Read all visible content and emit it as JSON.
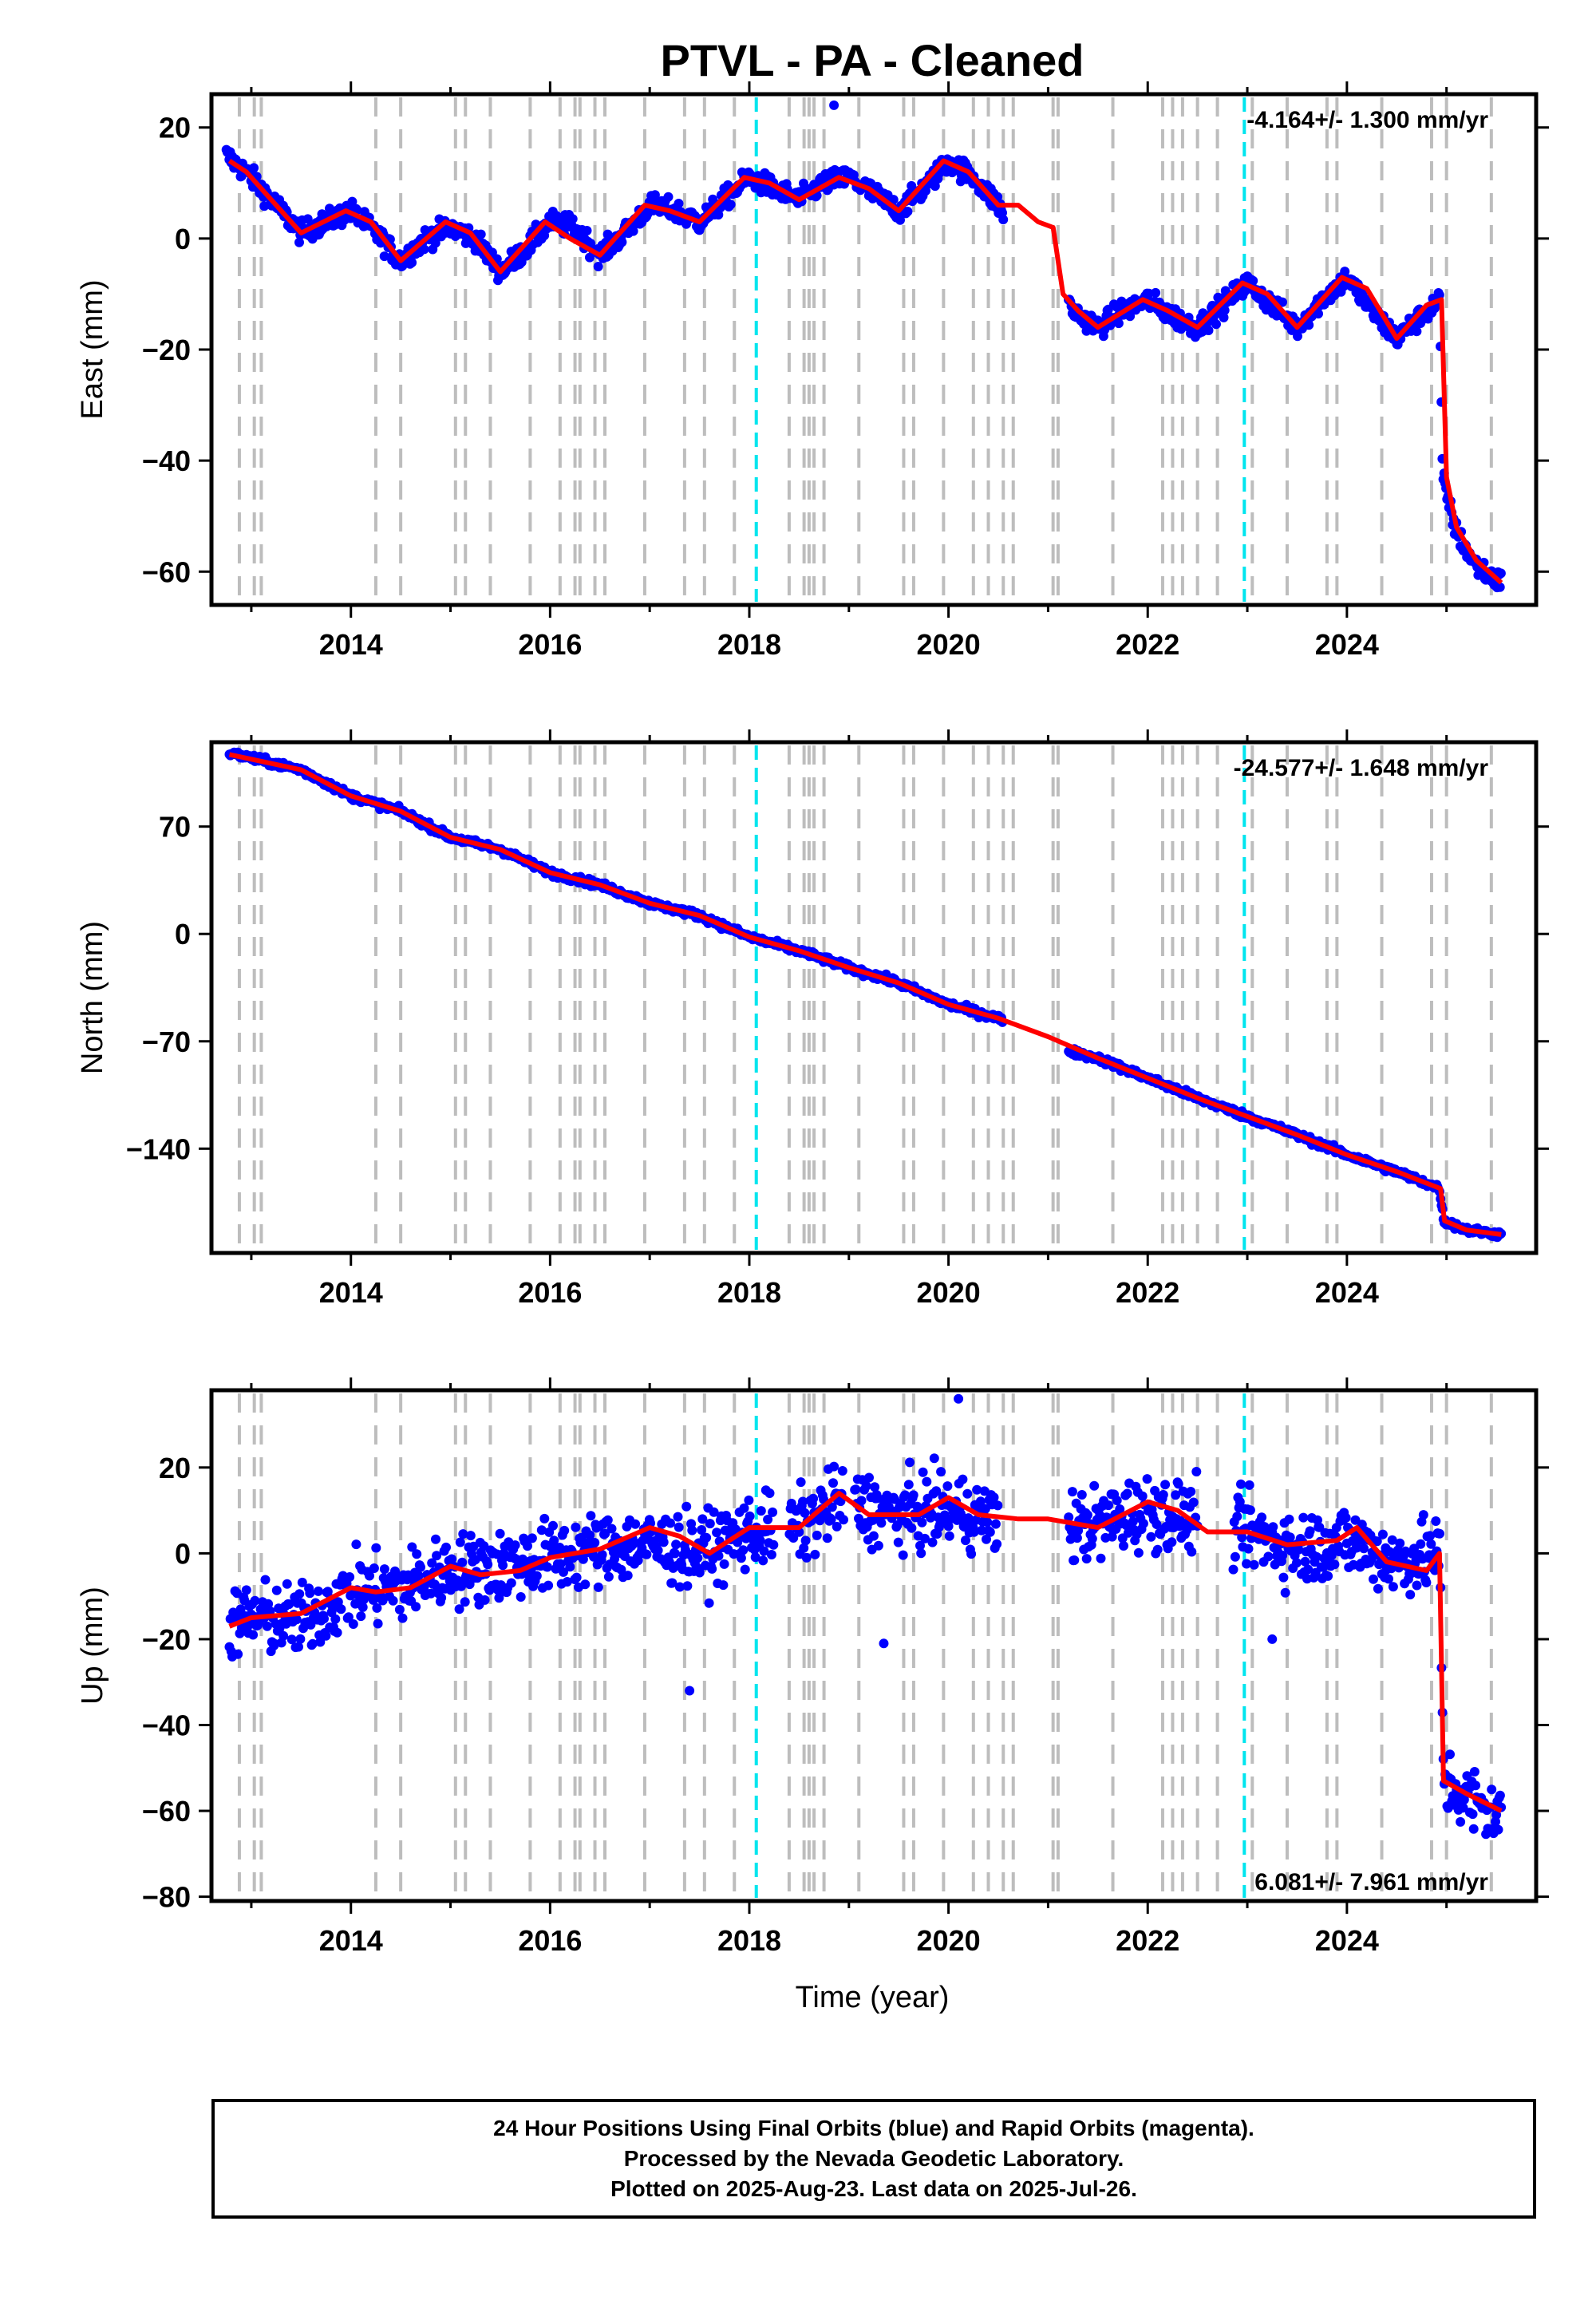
{
  "title": "PTVL  - PA - Cleaned",
  "xlabel": "Time (year)",
  "caption": [
    "24 Hour Positions Using Final Orbits (blue) and Rapid Orbits (magenta).",
    "Processed by the Nevada Geodetic Laboratory.",
    "Plotted on 2025-Aug-23. Last data on 2025-Jul-26."
  ],
  "colors": {
    "data": "#0000ff",
    "model": "#ff0000",
    "gray_lines": "#bdbdbd",
    "cyan_lines": "#00e5ee",
    "axes": "#000000"
  },
  "chart_data": [
    {
      "type": "scatter",
      "component": "East",
      "ylabel": "East (mm)",
      "rate_label": "-4.164+/- 1.300 mm/yr",
      "rate_position": "top-right",
      "xlim": [
        2012.6,
        2025.9
      ],
      "ylim": [
        -66,
        26
      ],
      "xticks": [
        2014,
        2016,
        2018,
        2020,
        2022,
        2024
      ],
      "yticks": [
        20,
        0,
        -20,
        -40,
        -60
      ],
      "model": {
        "x": [
          2012.78,
          2012.95,
          2013.2,
          2013.5,
          2013.95,
          2014.2,
          2014.5,
          2014.95,
          2015.2,
          2015.5,
          2015.95,
          2016.2,
          2016.5,
          2016.95,
          2017.2,
          2017.5,
          2017.95,
          2018.2,
          2018.5,
          2018.9,
          2019.2,
          2019.5,
          2019.95,
          2020.2,
          2020.5,
          2020.7,
          2020.9,
          2021.05,
          2021.15,
          2021.3,
          2021.5,
          2021.95,
          2022.2,
          2022.5,
          2022.95,
          2023.2,
          2023.5,
          2023.95,
          2024.2,
          2024.5,
          2024.8,
          2024.95,
          2025.0,
          2025.1,
          2025.3,
          2025.55
        ],
        "y": [
          14,
          12,
          7,
          1,
          5,
          3,
          -4,
          3,
          1,
          -6,
          3,
          0,
          -3,
          6,
          5,
          3,
          11,
          10,
          7,
          11,
          9,
          5,
          14,
          12,
          6,
          6,
          3,
          2,
          -10,
          -13,
          -16,
          -11,
          -13,
          -16,
          -8,
          -10,
          -16,
          -7,
          -9,
          -18,
          -12,
          -11,
          -43,
          -52,
          -58,
          -62
        ]
      },
      "scatter_model": {
        "x": [
          2012.75,
          2013.0,
          2013.25,
          2013.5,
          2013.75,
          2014.0,
          2014.25,
          2014.5,
          2014.75,
          2015.0,
          2015.25,
          2015.5,
          2015.75,
          2016.0,
          2016.25,
          2016.5,
          2016.75,
          2017.0,
          2017.25,
          2017.5,
          2017.75,
          2018.0,
          2018.25,
          2018.5,
          2018.75,
          2019.0,
          2019.25,
          2019.5,
          2019.75,
          2020.0,
          2020.25,
          2020.5,
          2021.25,
          2021.5,
          2021.75,
          2022.0,
          2022.25,
          2022.5,
          2022.75,
          2023.0,
          2023.25,
          2023.5,
          2023.75,
          2024.0,
          2024.25,
          2024.5,
          2024.75,
          2024.93,
          2024.96,
          2025.1,
          2025.3,
          2025.55
        ],
        "y": [
          15,
          11,
          6,
          1,
          3,
          5,
          1,
          -4,
          0,
          2,
          0,
          -6,
          -2,
          3,
          2,
          -3,
          1,
          6,
          5,
          3,
          7,
          11,
          9,
          7,
          10,
          11,
          8,
          5,
          9,
          14,
          11,
          6,
          -13,
          -16,
          -13,
          -11,
          -14,
          -16,
          -12,
          -8,
          -12,
          -16,
          -11,
          -7,
          -13,
          -18,
          -14,
          -11,
          -43,
          -53,
          -59,
          -62
        ]
      },
      "scatter_gaps": [
        [
          2020.55,
          2021.2
        ]
      ],
      "scatter_noise": 1.4,
      "outliers": [
        {
          "x": 2018.85,
          "y": 24
        }
      ],
      "gray_lines": [
        2012.88,
        2013.03,
        2013.1,
        2014.25,
        2014.5,
        2015.05,
        2015.15,
        2015.4,
        2015.8,
        2016.1,
        2016.25,
        2016.3,
        2016.45,
        2016.55,
        2016.95,
        2017.35,
        2017.55,
        2017.85,
        2018.4,
        2018.55,
        2018.6,
        2018.65,
        2018.75,
        2019.1,
        2019.55,
        2019.65,
        2019.95,
        2020.25,
        2020.4,
        2020.55,
        2020.65,
        2021.05,
        2021.1,
        2021.65,
        2022.15,
        2022.25,
        2022.35,
        2022.5,
        2022.7,
        2023.05,
        2023.4,
        2023.8,
        2023.9,
        2024.35,
        2024.85,
        2025.0,
        2025.45
      ],
      "cyan_lines": [
        2018.07,
        2022.97
      ]
    },
    {
      "type": "scatter",
      "component": "North",
      "ylabel": "North (mm)",
      "rate_label": "-24.577+/- 1.648 mm/yr",
      "rate_position": "top-right",
      "xlim": [
        2012.6,
        2025.9
      ],
      "ylim": [
        -208,
        125
      ],
      "xticks": [
        2014,
        2016,
        2018,
        2020,
        2022,
        2024
      ],
      "yticks": [
        70,
        0,
        -70,
        -140
      ],
      "model": {
        "x": [
          2012.78,
          2013.5,
          2014.0,
          2014.5,
          2015.0,
          2015.5,
          2016.0,
          2016.5,
          2017.0,
          2017.5,
          2018.0,
          2018.5,
          2019.0,
          2019.5,
          2020.0,
          2020.5,
          2021.0,
          2021.5,
          2022.0,
          2022.5,
          2023.0,
          2023.5,
          2024.0,
          2024.5,
          2024.94,
          2024.98,
          2025.2,
          2025.55
        ],
        "y": [
          117,
          107,
          90,
          80,
          63,
          55,
          40,
          32,
          20,
          12,
          -2,
          -11,
          -22,
          -32,
          -46,
          -55,
          -67,
          -81,
          -94,
          -107,
          -119,
          -131,
          -144,
          -155,
          -166,
          -187,
          -193,
          -196
        ]
      },
      "scatter_model": {
        "x": [
          2012.78,
          2013.5,
          2014.0,
          2014.5,
          2015.0,
          2015.5,
          2016.0,
          2016.5,
          2017.0,
          2017.5,
          2018.0,
          2018.5,
          2019.0,
          2019.5,
          2020.0,
          2020.5,
          2021.25,
          2021.5,
          2022.0,
          2022.5,
          2023.0,
          2023.5,
          2024.0,
          2024.5,
          2024.93,
          2024.97,
          2025.2,
          2025.55
        ],
        "y": [
          118,
          107,
          90,
          80,
          63,
          55,
          40,
          32,
          20,
          12,
          -2,
          -11,
          -22,
          -32,
          -46,
          -55,
          -77,
          -81,
          -94,
          -107,
          -119,
          -131,
          -144,
          -155,
          -166,
          -187,
          -193,
          -196
        ]
      },
      "scatter_gaps": [
        [
          2020.55,
          2021.2
        ]
      ],
      "scatter_noise": 1.6,
      "outliers": [],
      "gray_lines": [
        2012.88,
        2013.03,
        2013.1,
        2014.25,
        2014.5,
        2015.05,
        2015.15,
        2015.4,
        2015.8,
        2016.1,
        2016.25,
        2016.3,
        2016.45,
        2016.55,
        2016.95,
        2017.35,
        2017.55,
        2017.85,
        2018.4,
        2018.55,
        2018.6,
        2018.65,
        2018.75,
        2019.1,
        2019.55,
        2019.65,
        2019.95,
        2020.25,
        2020.4,
        2020.55,
        2020.65,
        2021.05,
        2021.1,
        2021.65,
        2022.15,
        2022.25,
        2022.35,
        2022.5,
        2022.7,
        2023.05,
        2023.4,
        2023.8,
        2023.9,
        2024.35,
        2024.85,
        2025.0,
        2025.45
      ],
      "cyan_lines": [
        2018.07,
        2022.97
      ]
    },
    {
      "type": "scatter",
      "component": "Up",
      "ylabel": "Up (mm)",
      "rate_label": "6.081+/- 7.961 mm/yr",
      "rate_position": "bottom-right",
      "xlim": [
        2012.6,
        2025.9
      ],
      "ylim": [
        -81,
        38
      ],
      "xticks": [
        2014,
        2016,
        2018,
        2020,
        2022,
        2024
      ],
      "yticks": [
        20,
        0,
        -20,
        -40,
        -60,
        -80
      ],
      "model": {
        "x": [
          2012.78,
          2013.0,
          2013.5,
          2014.0,
          2014.25,
          2014.6,
          2015.0,
          2015.3,
          2015.7,
          2016.0,
          2016.5,
          2017.0,
          2017.3,
          2017.6,
          2018.0,
          2018.5,
          2018.9,
          2019.2,
          2019.7,
          2020.0,
          2020.3,
          2020.7,
          2021.0,
          2021.5,
          2022.0,
          2022.3,
          2022.6,
          2023.0,
          2023.4,
          2023.9,
          2024.1,
          2024.4,
          2024.8,
          2024.93,
          2024.97,
          2025.2,
          2025.55
        ],
        "y": [
          -17,
          -15,
          -14,
          -8,
          -9,
          -8,
          -3,
          -5,
          -4,
          -1,
          1,
          6,
          4,
          0,
          6,
          6,
          14,
          9,
          9,
          13,
          9,
          8,
          8,
          6,
          12,
          10,
          5,
          5,
          2,
          3,
          6,
          -2,
          -4,
          0,
          -53,
          -56,
          -60
        ]
      },
      "scatter_model": {
        "x": [
          2012.78,
          2013.0,
          2013.5,
          2014.0,
          2014.5,
          2015.0,
          2015.5,
          2016.0,
          2016.5,
          2017.0,
          2017.5,
          2018.0,
          2018.5,
          2018.9,
          2019.5,
          2020.0,
          2020.45,
          2021.25,
          2021.5,
          2022.0,
          2022.45,
          2023.0,
          2023.5,
          2024.0,
          2024.5,
          2024.93,
          2024.97,
          2025.2,
          2025.55
        ],
        "y": [
          -17,
          -15,
          -16,
          -9,
          -8,
          -4,
          -3,
          -1,
          1,
          2,
          0,
          5,
          6,
          12,
          9,
          10,
          8,
          6,
          7,
          10,
          8,
          5,
          1,
          3,
          -2,
          0,
          -53,
          -57,
          -62
        ]
      },
      "scatter_gaps": [
        [
          2018.25,
          2018.4
        ],
        [
          2018.95,
          2019.05
        ],
        [
          2020.5,
          2021.2
        ],
        [
          2022.5,
          2022.85
        ]
      ],
      "scatter_noise": 6,
      "outliers": [
        {
          "x": 2017.4,
          "y": -32
        },
        {
          "x": 2019.35,
          "y": -21
        },
        {
          "x": 2020.1,
          "y": 36
        },
        {
          "x": 2023.25,
          "y": -20
        }
      ],
      "gray_lines": [
        2012.88,
        2013.03,
        2013.1,
        2014.25,
        2014.5,
        2015.05,
        2015.15,
        2015.4,
        2015.8,
        2016.1,
        2016.25,
        2016.3,
        2016.45,
        2016.55,
        2016.95,
        2017.35,
        2017.55,
        2017.85,
        2018.4,
        2018.55,
        2018.6,
        2018.65,
        2018.75,
        2019.1,
        2019.55,
        2019.65,
        2019.95,
        2020.25,
        2020.4,
        2020.55,
        2020.65,
        2021.05,
        2021.1,
        2021.65,
        2022.15,
        2022.25,
        2022.35,
        2022.5,
        2022.7,
        2023.05,
        2023.4,
        2023.8,
        2023.9,
        2024.35,
        2024.85,
        2025.0,
        2025.45
      ],
      "cyan_lines": [
        2018.07,
        2022.97
      ]
    }
  ]
}
